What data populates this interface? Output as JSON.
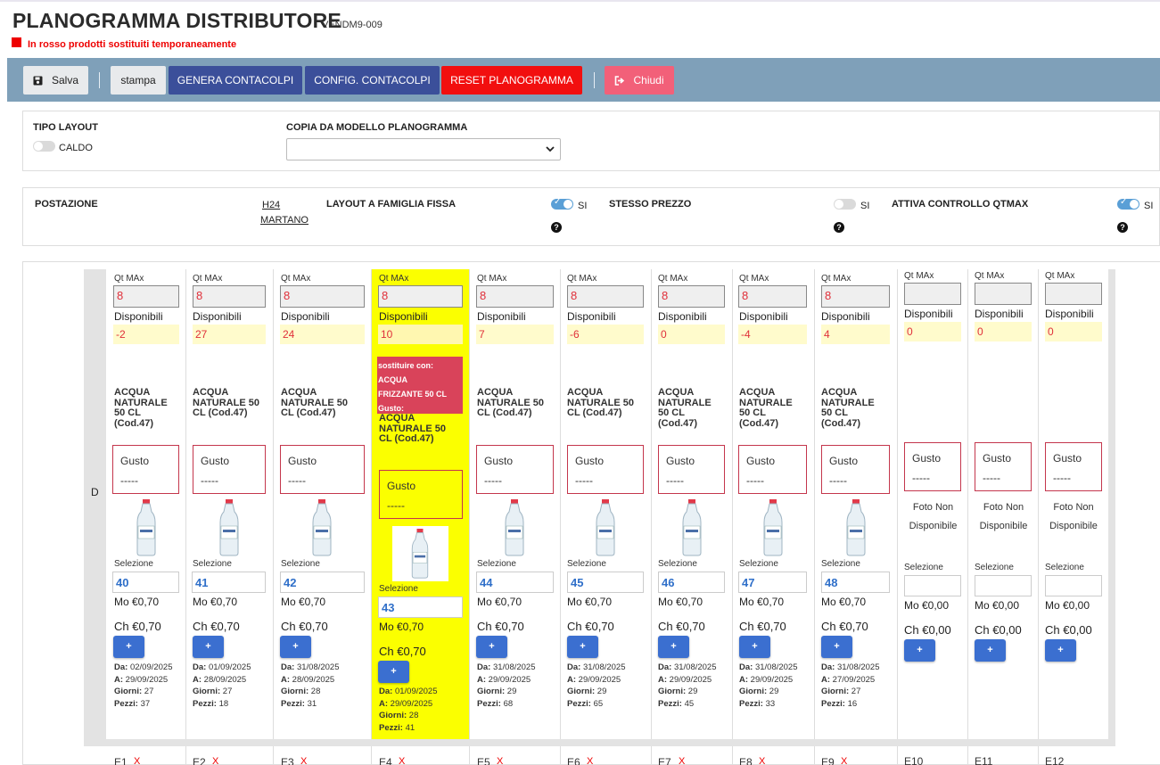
{
  "header": {
    "title": "PLANOGRAMMA DISTRIBUTORE",
    "code": "VENDM9-009",
    "legend": "In rosso prodotti sostituiti temporaneamente",
    "legend_color": "#ee0000"
  },
  "toolbar": {
    "save": "Salva",
    "print": "stampa",
    "generate": "GENERA CONTACOLPI",
    "config": "CONFIG. CONTACOLPI",
    "reset": "RESET PLANOGRAMMA",
    "close": "Chiudi"
  },
  "layout_panel": {
    "tipo_layout_label": "TIPO LAYOUT",
    "tipo_layout_value": "CALDO",
    "tipo_layout_on": false,
    "copia_label": "COPIA DA MODELLO PLANOGRAMMA",
    "copia_value": ""
  },
  "station_panel": {
    "postazione_label": "POSTAZIONE",
    "postazione_line1": "H24",
    "postazione_line2": "MARTANO",
    "famiglia_label": "LAYOUT A FAMIGLIA FISSA",
    "famiglia_value": "SI",
    "famiglia_on": true,
    "prezzo_label": "STESSO PREZZO",
    "prezzo_value": "SI",
    "prezzo_on": false,
    "qtmax_label": "ATTIVA CONTROLLO QTMAX",
    "qtmax_value": "SI",
    "qtmax_on": true,
    "help": "?"
  },
  "grid": {
    "row_label": "D",
    "labels": {
      "qt_max": "Qt MAx",
      "disponibili": "Disponibili",
      "gusto": "Gusto",
      "gusto_value": "-----",
      "selezione": "Selezione",
      "plus": "+",
      "da": "Da:",
      "a": "A:",
      "giorni": "Giorni:",
      "pezzi": "Pezzi:",
      "no_photo_1": "Foto Non",
      "no_photo_2": "Disponibile"
    },
    "columns": [
      {
        "qt_max": "8",
        "disponibili": "-2",
        "name": [
          "ACQUA",
          "NATURALE",
          "50 CL",
          "(Cod.47)"
        ],
        "selezione": "40",
        "mo": "Mo €0,70",
        "ch": "Ch €0,70",
        "da": "02/09/2025",
        "a": "29/09/2025",
        "giorni": "27",
        "pezzi": "37"
      },
      {
        "qt_max": "8",
        "disponibili": "27",
        "name": [
          "ACQUA",
          "NATURALE 50",
          "CL (Cod.47)"
        ],
        "selezione": "41",
        "mo": "Mo €0,70",
        "ch": "Ch €0,70",
        "da": "01/09/2025",
        "a": "28/09/2025",
        "giorni": "27",
        "pezzi": "18"
      },
      {
        "qt_max": "8",
        "disponibili": "24",
        "name": [
          "ACQUA",
          "NATURALE 50",
          "CL (Cod.47)"
        ],
        "selezione": "42",
        "mo": "Mo €0,70",
        "ch": "Ch €0,70",
        "da": "31/08/2025",
        "a": "28/09/2025",
        "giorni": "28",
        "pezzi": "31"
      },
      {
        "qt_max": "8",
        "disponibili": "10",
        "substitute": [
          "sostituire con:",
          "ACQUA",
          "FRIZZANTE 50 CL",
          "Gusto:"
        ],
        "name": [
          "ACQUA",
          "NATURALE 50",
          "CL (Cod.47)"
        ],
        "selezione": "43",
        "mo": "Mo €0,70",
        "ch": "Ch €0,70",
        "da": "01/09/2025",
        "a": "29/09/2025",
        "giorni": "28",
        "pezzi": "41"
      },
      {
        "qt_max": "8",
        "disponibili": "7",
        "name": [
          "ACQUA",
          "NATURALE 50",
          "CL (Cod.47)"
        ],
        "selezione": "44",
        "mo": "Mo €0,70",
        "ch": "Ch €0,70",
        "da": "31/08/2025",
        "a": "29/09/2025",
        "giorni": "29",
        "pezzi": "68"
      },
      {
        "qt_max": "8",
        "disponibili": "-6",
        "name": [
          "ACQUA",
          "NATURALE 50",
          "CL (Cod.47)"
        ],
        "selezione": "45",
        "mo": "Mo €0,70",
        "ch": "Ch €0,70",
        "da": "31/08/2025",
        "a": "29/09/2025",
        "giorni": "29",
        "pezzi": "65"
      },
      {
        "qt_max": "8",
        "disponibili": "0",
        "name": [
          "ACQUA",
          "NATURALE",
          "50 CL",
          "(Cod.47)"
        ],
        "selezione": "46",
        "mo": "Mo €0,70",
        "ch": "Ch €0,70",
        "da": "31/08/2025",
        "a": "29/09/2025",
        "giorni": "29",
        "pezzi": "45"
      },
      {
        "qt_max": "8",
        "disponibili": "-4",
        "name": [
          "ACQUA",
          "NATURALE",
          "50 CL",
          "(Cod.47)"
        ],
        "selezione": "47",
        "mo": "Mo €0,70",
        "ch": "Ch €0,70",
        "da": "31/08/2025",
        "a": "29/09/2025",
        "giorni": "29",
        "pezzi": "33"
      },
      {
        "qt_max": "8",
        "disponibili": "4",
        "name": [
          "ACQUA",
          "NATURALE",
          "50 CL",
          "(Cod.47)"
        ],
        "selezione": "48",
        "mo": "Mo €0,70",
        "ch": "Ch €0,70",
        "da": "31/08/2025",
        "a": "27/09/2025",
        "giorni": "27",
        "pezzi": "16"
      },
      {
        "qt_max": "",
        "disponibili": "0",
        "selezione": "",
        "mo": "Mo €0,00",
        "ch": "Ch €0,00"
      },
      {
        "qt_max": "",
        "disponibili": "0",
        "selezione": "",
        "mo": "Mo €0,00",
        "ch": "Ch €0,00"
      },
      {
        "qt_max": "",
        "disponibili": "0",
        "selezione": "",
        "mo": "Mo €0,00",
        "ch": "Ch €0,00"
      }
    ],
    "bottom_codes": [
      "E1",
      "E2",
      "E3",
      "E4",
      "E5",
      "E6",
      "E7",
      "E8",
      "E9",
      "E10",
      "E11",
      "E12"
    ],
    "remove_mark": "X"
  }
}
